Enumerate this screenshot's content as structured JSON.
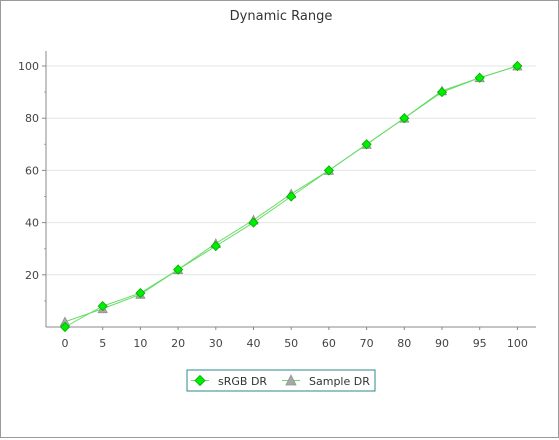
{
  "chart_data": {
    "type": "line",
    "title": "Dynamic Range",
    "categories": [
      "0",
      "5",
      "10",
      "20",
      "30",
      "40",
      "50",
      "60",
      "70",
      "80",
      "90",
      "95",
      "100"
    ],
    "y_ticks": [
      20,
      40,
      60,
      80,
      100
    ],
    "ylim": [
      0,
      100
    ],
    "grid": true,
    "legend_position": "bottom",
    "series": [
      {
        "name": "sRGB DR",
        "marker": "diamond",
        "color": "#00ee00",
        "line_color": "#66dd66",
        "values": [
          0,
          8,
          13,
          22,
          31,
          40,
          50,
          60,
          70,
          80,
          90,
          95.5,
          100
        ]
      },
      {
        "name": "Sample DR",
        "marker": "triangle",
        "color": "#a8a8a8",
        "line_color": "#66dd66",
        "values": [
          2,
          7,
          12.5,
          22,
          32,
          41,
          51,
          60,
          70,
          80,
          90.5,
          95.5,
          100
        ]
      }
    ]
  }
}
